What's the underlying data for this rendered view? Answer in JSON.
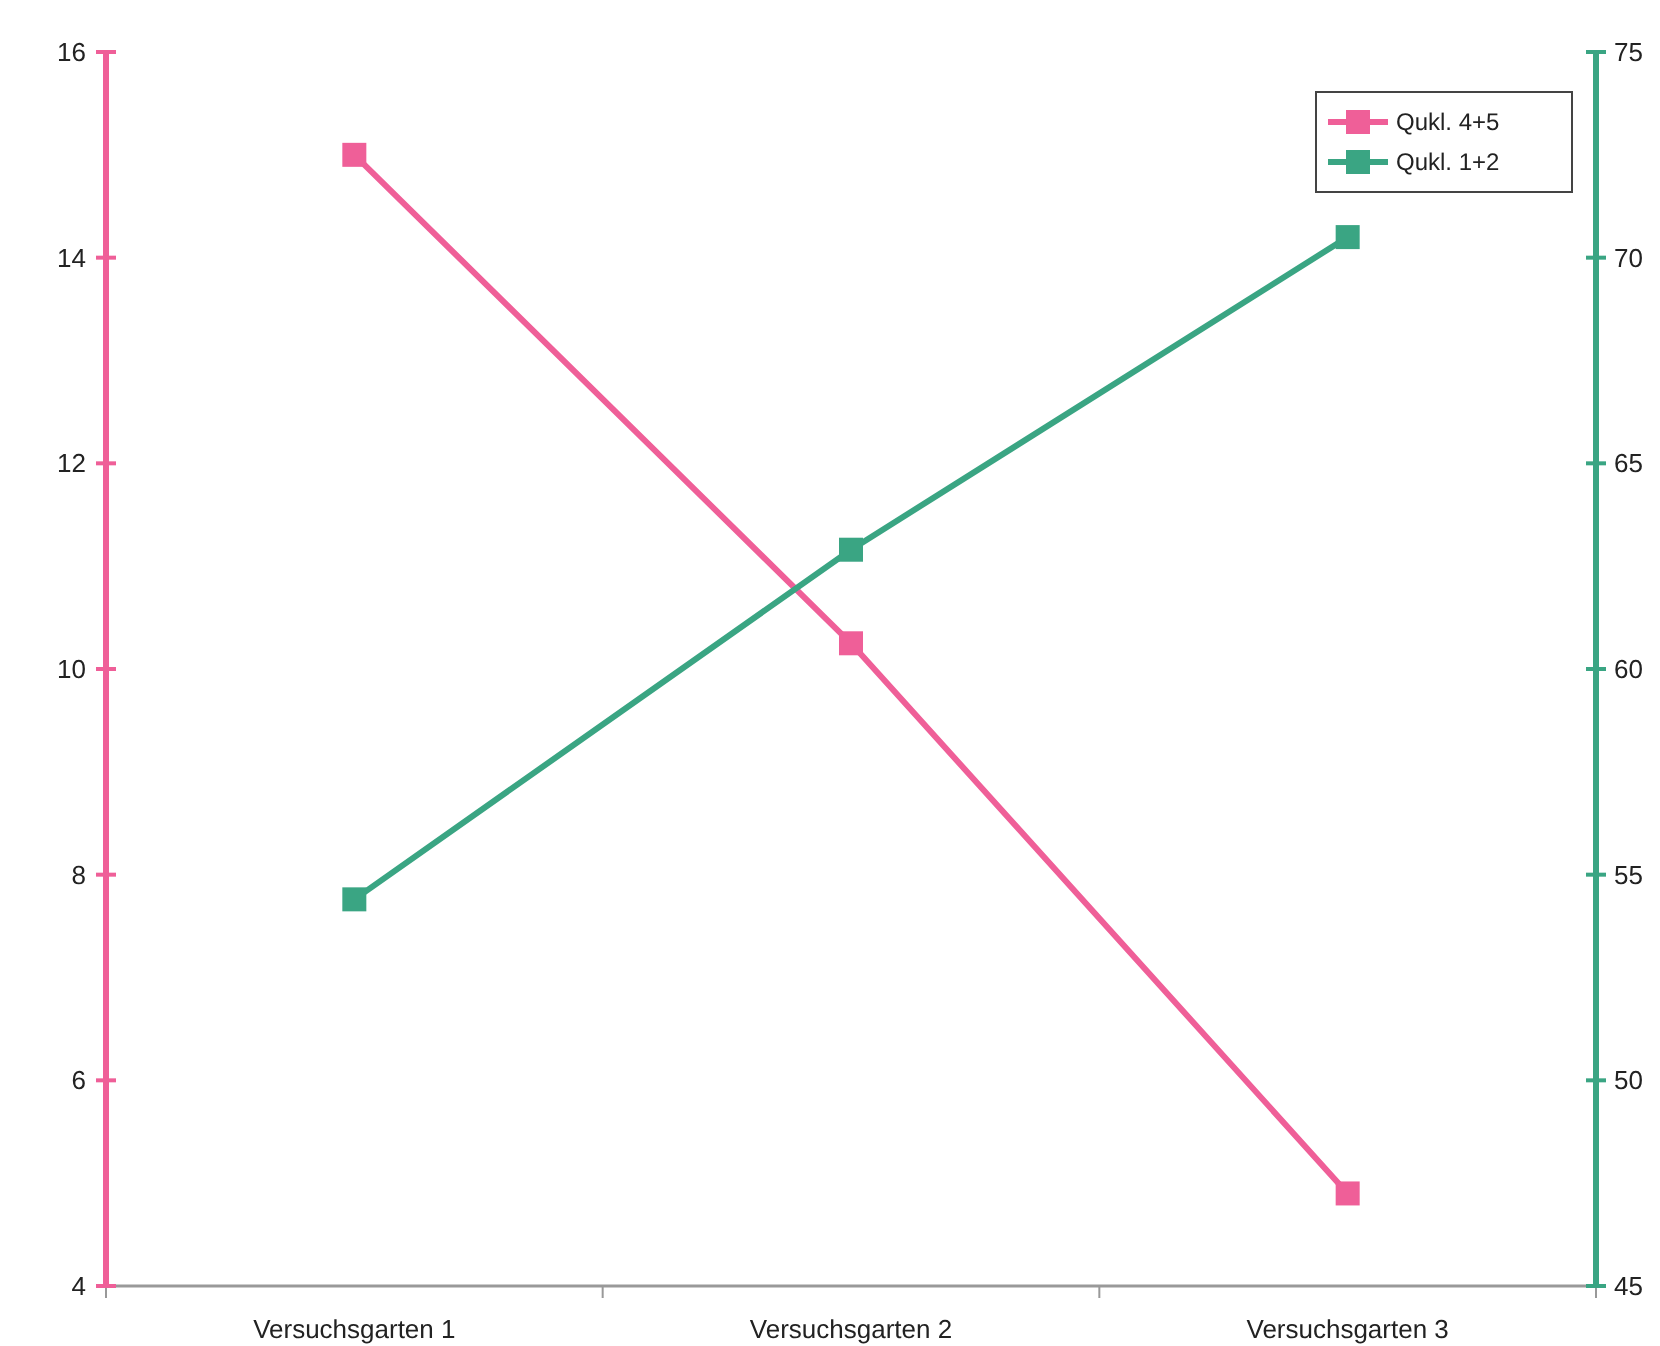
{
  "chart_data": {
    "type": "line",
    "categories": [
      "Versuchsgarten 1",
      "Versuchsgarten 2",
      "Versuchsgarten 3"
    ],
    "series": [
      {
        "name": "Qukl. 4+5",
        "color": "#ef5f98",
        "values": [
          15,
          10.25,
          4.9
        ]
      },
      {
        "name": "Qukl. 1+2",
        "color": "#3aa583",
        "values": [
          54.4,
          62.9,
          70.5
        ],
        "axis": "y2"
      }
    ],
    "ylim": [
      4,
      16
    ],
    "yticks": [
      4,
      6,
      8,
      10,
      12,
      14,
      16
    ],
    "y2lim": [
      45,
      75
    ],
    "y2ticks": [
      45,
      50,
      55,
      60,
      65,
      70,
      75
    ],
    "marker": "square",
    "line_style": "solid",
    "legend": "top right",
    "grid": false
  }
}
